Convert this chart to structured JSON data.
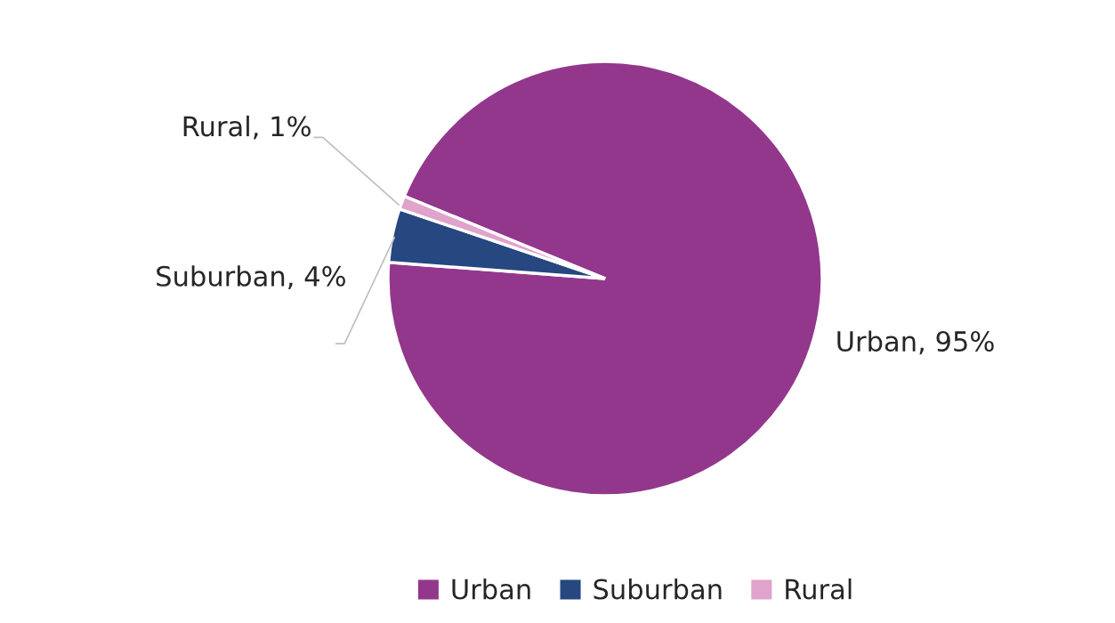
{
  "chart_data": {
    "type": "pie",
    "categories": [
      "Urban",
      "Suburban",
      "Rural"
    ],
    "values": [
      95,
      4,
      1
    ],
    "colors": [
      "#93378c",
      "#264780",
      "#e0a3cc"
    ],
    "value_labels": [
      "Urban, 95%",
      "Suburban, 4%",
      "Rural, 1%"
    ],
    "legend": "bottom"
  }
}
